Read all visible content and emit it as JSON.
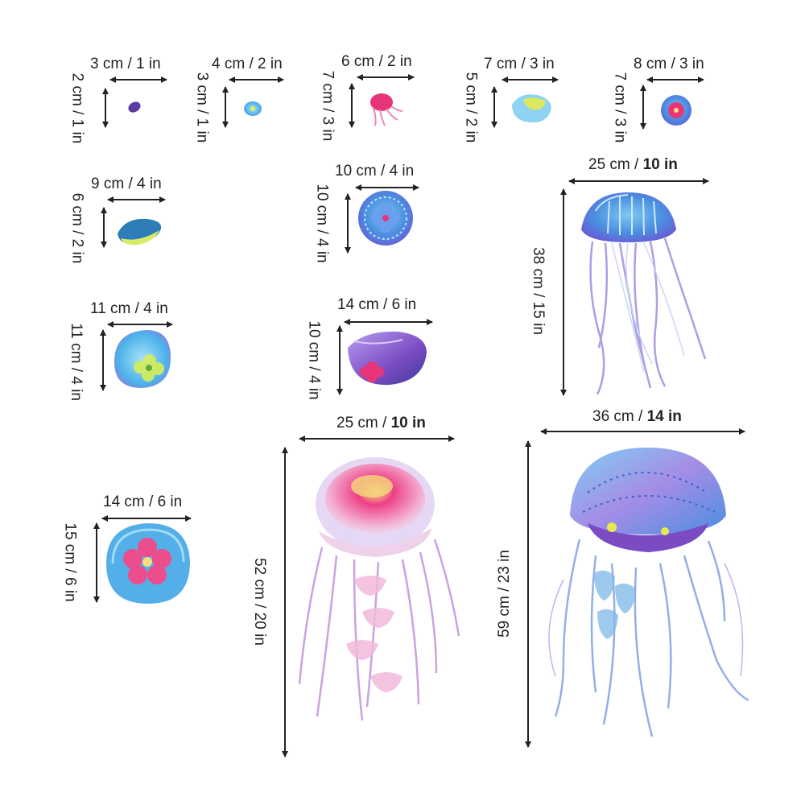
{
  "stickers": [
    {
      "id": "s1",
      "width_label": "3 cm / 1 in",
      "height_label": "2 cm / 1 in"
    },
    {
      "id": "s2",
      "width_label": "4 cm / 2 in",
      "height_label": "3 cm / 1 in"
    },
    {
      "id": "s3",
      "width_label": "6 cm / 2 in",
      "height_label": "7 cm / 3 in"
    },
    {
      "id": "s4",
      "width_label": "7 cm / 3 in",
      "height_label": "5 cm / 2 in"
    },
    {
      "id": "s5",
      "width_label": "8 cm / 3 in",
      "height_label": "7 cm / 3 in"
    },
    {
      "id": "s6",
      "width_label": "9 cm / 4 in",
      "height_label": "6 cm / 2 in"
    },
    {
      "id": "s7",
      "width_label": "10 cm / 4 in",
      "height_label": "10 cm / 4 in"
    },
    {
      "id": "s8",
      "width_label": "11 cm / 4 in",
      "height_label": "11 cm / 4 in"
    },
    {
      "id": "s9",
      "width_label": "14 cm / 6 in",
      "height_label": "10 cm / 4 in"
    },
    {
      "id": "s10",
      "width_label": "14 cm / 6 in",
      "height_label": "15 cm / 6 in"
    },
    {
      "id": "s11",
      "width_cm": "25 cm / ",
      "width_in": "10 in",
      "height_label": "38 cm / 15 in"
    },
    {
      "id": "s12",
      "width_cm": "25 cm / ",
      "width_in": "10 in",
      "height_label": "52 cm / 20 in"
    },
    {
      "id": "s13",
      "width_cm": "36 cm / ",
      "width_in": "14 in",
      "height_label": "59 cm / 23 in"
    }
  ],
  "colors": {
    "pink": "#e8357a",
    "blue": "#4a8fe0",
    "purple": "#7a4bc2",
    "lavender": "#c7b3ec",
    "cyan": "#6cc8ef",
    "yellow": "#e7ea4f",
    "lightpink": "#f6b6d8"
  }
}
